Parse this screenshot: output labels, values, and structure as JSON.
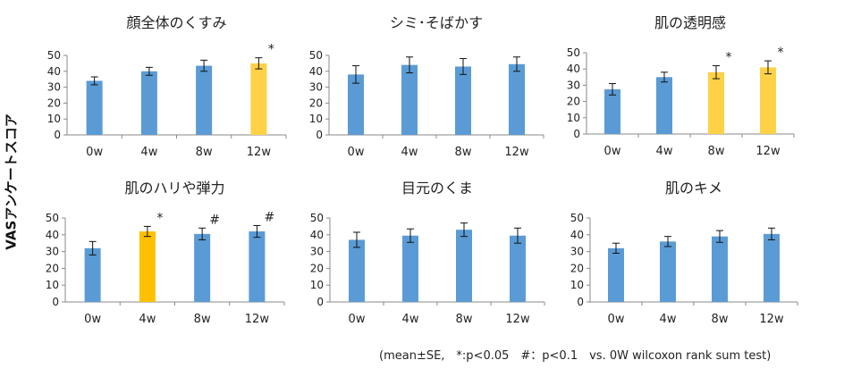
{
  "y_axis_label": "VASアンケートスコア",
  "footnote": "(mean±SE,　*:p<0.05　#：p<0.1　vs. 0W wilcoxon rank sum test)",
  "colors": {
    "normal": "#5b9bd5",
    "highlight": "#ffd147",
    "highlight_strong": "#ffc000"
  },
  "chart_data": [
    {
      "type": "bar",
      "title": "顔全体のくすみ",
      "categories": [
        "0w",
        "4w",
        "8w",
        "12w"
      ],
      "values": [
        34,
        40,
        43.5,
        45
      ],
      "errors": [
        2.5,
        2.5,
        3.5,
        3.5
      ],
      "marks": [
        "",
        "",
        "",
        "*"
      ],
      "highlight": [
        false,
        false,
        false,
        true
      ],
      "ylim": [
        0,
        50
      ],
      "yticks": [
        0,
        10,
        20,
        30,
        40,
        50
      ]
    },
    {
      "type": "bar",
      "title": "シミ･そばかす",
      "categories": [
        "0w",
        "4w",
        "8w",
        "12w"
      ],
      "values": [
        38,
        44,
        43,
        44.5
      ],
      "errors": [
        5.5,
        5,
        5,
        4.5
      ],
      "marks": [
        "",
        "",
        "",
        ""
      ],
      "highlight": [
        false,
        false,
        false,
        false
      ],
      "ylim": [
        0,
        50
      ],
      "yticks": [
        0,
        10,
        20,
        30,
        40,
        50
      ]
    },
    {
      "type": "bar",
      "title": "肌の透明感",
      "categories": [
        "0w",
        "4w",
        "8w",
        "12w"
      ],
      "values": [
        27.5,
        35,
        38,
        41
      ],
      "errors": [
        3.5,
        3,
        4,
        4
      ],
      "marks": [
        "",
        "",
        "*",
        "*"
      ],
      "highlight": [
        false,
        false,
        true,
        true
      ],
      "ylim": [
        0,
        50
      ],
      "yticks": [
        0,
        10,
        20,
        30,
        40,
        50
      ]
    },
    {
      "type": "bar",
      "title": "肌のハリや弾力",
      "categories": [
        "0w",
        "4w",
        "8w",
        "12w"
      ],
      "values": [
        32,
        42,
        40.5,
        42
      ],
      "errors": [
        4,
        3,
        3.5,
        3.5
      ],
      "marks": [
        "",
        "*",
        "#",
        "#"
      ],
      "highlight": [
        false,
        true,
        false,
        false
      ],
      "ylim": [
        0,
        50
      ],
      "yticks": [
        0,
        10,
        20,
        30,
        40,
        50
      ]
    },
    {
      "type": "bar",
      "title": "目元のくま",
      "categories": [
        "0w",
        "4w",
        "8w",
        "12w"
      ],
      "values": [
        37,
        39.5,
        43,
        39.5
      ],
      "errors": [
        4.5,
        4,
        4,
        4.5
      ],
      "marks": [
        "",
        "",
        "",
        ""
      ],
      "highlight": [
        false,
        false,
        false,
        false
      ],
      "ylim": [
        0,
        50
      ],
      "yticks": [
        0,
        10,
        20,
        30,
        40,
        50
      ]
    },
    {
      "type": "bar",
      "title": "肌のキメ",
      "categories": [
        "0w",
        "4w",
        "8w",
        "12w"
      ],
      "values": [
        32,
        36,
        39,
        40.5
      ],
      "errors": [
        3,
        3,
        3.5,
        3.5
      ],
      "marks": [
        "",
        "",
        "",
        ""
      ],
      "highlight": [
        false,
        false,
        false,
        false
      ],
      "ylim": [
        0,
        50
      ],
      "yticks": [
        0,
        10,
        20,
        30,
        40,
        50
      ]
    }
  ]
}
